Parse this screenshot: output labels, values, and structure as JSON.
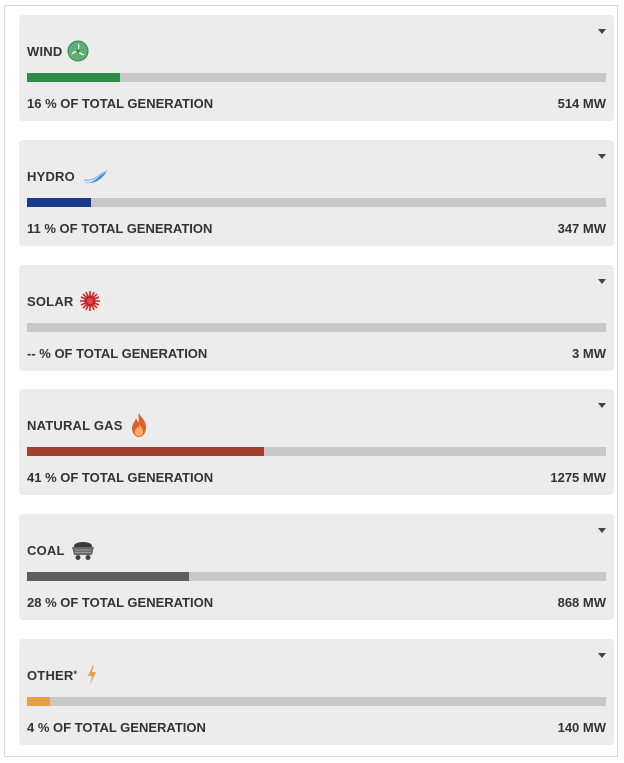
{
  "colors": {
    "wind": "#2e8b47",
    "hydro": "#1a3a8c",
    "solar": "#c0262d",
    "natural_gas": "#a1402c",
    "coal": "#5e5e5e",
    "other": "#e6a04a",
    "track": "#c8c8c8"
  },
  "sources": [
    {
      "label": "WIND",
      "note": "",
      "icon": "wind-turbine-icon",
      "percent_text": "16 % OF TOTAL GENERATION",
      "percent": 16,
      "mw_text": "514 MW"
    },
    {
      "label": "HYDRO",
      "note": "",
      "icon": "water-wave-icon",
      "percent_text": "11 % OF TOTAL GENERATION",
      "percent": 11,
      "mw_text": "347 MW"
    },
    {
      "label": "SOLAR",
      "note": "",
      "icon": "sun-icon",
      "percent_text": "-- % OF TOTAL GENERATION",
      "percent": 0,
      "mw_text": "3 MW"
    },
    {
      "label": "NATURAL GAS",
      "note": "",
      "icon": "flame-icon",
      "percent_text": "41 % OF TOTAL GENERATION",
      "percent": 41,
      "mw_text": "1275 MW"
    },
    {
      "label": "COAL",
      "note": "",
      "icon": "mine-cart-icon",
      "percent_text": "28 % OF TOTAL GENERATION",
      "percent": 28,
      "mw_text": "868 MW"
    },
    {
      "label": "OTHER",
      "note": "*",
      "icon": "lightning-bolt-icon",
      "percent_text": "4 % OF TOTAL GENERATION",
      "percent": 4,
      "mw_text": "140 MW"
    }
  ]
}
